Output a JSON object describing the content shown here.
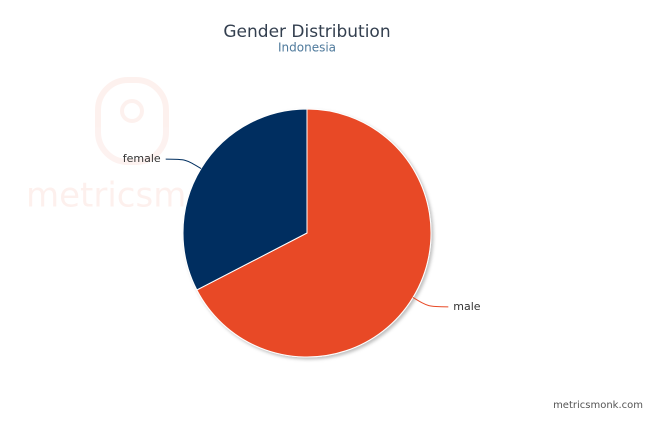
{
  "chart_data": {
    "type": "pie",
    "title": "Gender Distribution",
    "subtitle": "Indonesia",
    "categories": [
      "male",
      "female"
    ],
    "values": [
      67.4,
      32.6
    ],
    "colors": [
      "#e84a27",
      "#012f60"
    ],
    "watermark": "metricsmonk",
    "credit": "metricsmonk.com"
  }
}
